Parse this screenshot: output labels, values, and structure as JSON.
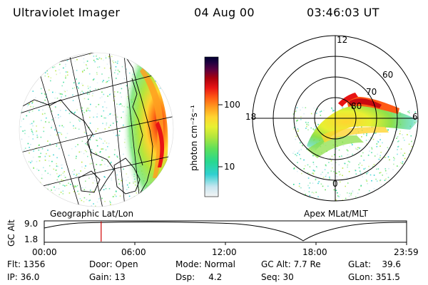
{
  "header": {
    "title": "Ultraviolet Imager",
    "date": "04 Aug 00",
    "time": "03:46:03 UT"
  },
  "geo_panel": {
    "label": "Geographic Lat/Lon"
  },
  "polar_panel": {
    "label": "Apex MLat/MLT",
    "mlt_labels": [
      "12",
      "18",
      "6",
      "0"
    ],
    "lat_labels": [
      "60",
      "70",
      "80"
    ]
  },
  "colorbar": {
    "unit_label": "photon cm⁻²s⁻¹",
    "ticks": [
      "100",
      "10"
    ],
    "colors": [
      "#f4f4f4",
      "#c8e6f0",
      "#2fd0d0",
      "#28d890",
      "#5ce05c",
      "#b4e63c",
      "#e8f032",
      "#ffd430",
      "#ff9c1e",
      "#ff5a14",
      "#e81414",
      "#a8000e",
      "#5a0040",
      "#200040",
      "#000030"
    ]
  },
  "altitude_plot": {
    "ylabel": "GC Alt",
    "ytick_top": "9.0",
    "ytick_bottom": "1.8",
    "xticks": [
      "00:00",
      "06:00",
      "12:00",
      "18:00",
      "23:59"
    ],
    "current_time_marker_hours": 3.77
  },
  "status": {
    "flt": "Flt: 1356",
    "ip": "IP: 36.0",
    "door": "Door: Open",
    "gain": "Gain: 13",
    "mode": "Mode: Normal",
    "dsp": "Dsp:     4.2",
    "gc_alt": "GC Alt: 7.7 Re",
    "seq": "Seq: 30",
    "glat": "GLat:    39.6",
    "glon": "GLon: 351.5"
  }
}
